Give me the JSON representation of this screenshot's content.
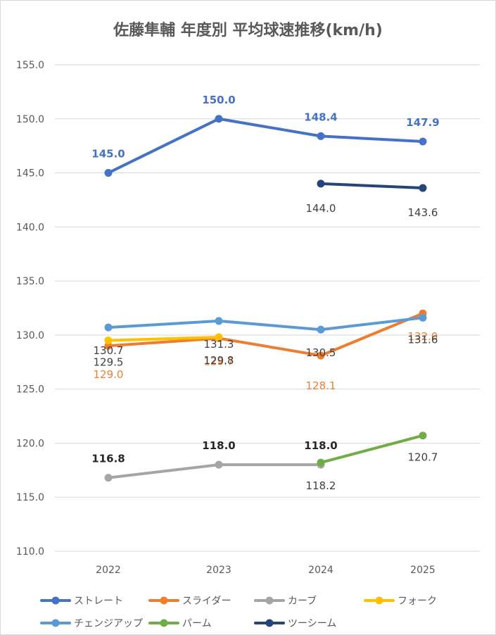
{
  "chart_data": {
    "type": "line",
    "title": "佐藤隼輔 年度別 平均球速推移(km/h)",
    "xlabel": "",
    "ylabel": "",
    "categories": [
      "2022",
      "2023",
      "2024",
      "2025"
    ],
    "ylim": [
      110.0,
      155.0
    ],
    "yticks": [
      "110.0",
      "115.0",
      "120.0",
      "125.0",
      "130.0",
      "135.0",
      "140.0",
      "145.0",
      "150.0",
      "155.0"
    ],
    "grid": true,
    "legend_position": "bottom",
    "series": [
      {
        "name": "ストレート",
        "color": "#4472C4",
        "values": [
          145.0,
          150.0,
          148.4,
          147.9
        ],
        "labels": [
          "145.0",
          "150.0",
          "148.4",
          "147.9"
        ],
        "label_color": "#4472C4",
        "label_bold": true
      },
      {
        "name": "スライダー",
        "color": "#ED7D31",
        "values": [
          129.0,
          129.7,
          128.1,
          132.0
        ],
        "labels": [
          "129.0",
          "129.7",
          "128.1",
          "132.0"
        ],
        "label_color": "#ED7D31",
        "label_bold": false
      },
      {
        "name": "カーブ",
        "color": "#A5A5A5",
        "values": [
          116.8,
          118.0,
          118.0,
          null
        ],
        "labels": [
          "116.8",
          "118.0",
          "118.0",
          null
        ],
        "label_color": "#262626",
        "label_bold": true
      },
      {
        "name": "フォーク",
        "color": "#FFC000",
        "values": [
          129.5,
          129.8,
          null,
          null
        ],
        "labels": [
          "129.5",
          "129.8",
          null,
          null
        ],
        "label_color": "#404040",
        "label_bold": false
      },
      {
        "name": "チェンジアップ",
        "color": "#5B9BD5",
        "values": [
          130.7,
          131.3,
          130.5,
          131.6
        ],
        "labels": [
          "130.7",
          "131.3",
          "130.5",
          "131.6"
        ],
        "label_color": "#404040",
        "label_bold": false
      },
      {
        "name": "パーム",
        "color": "#70AD47",
        "values": [
          null,
          null,
          118.2,
          120.7
        ],
        "labels": [
          null,
          null,
          "118.2",
          "120.7"
        ],
        "label_color": "#404040",
        "label_bold": false
      },
      {
        "name": "ツーシーム",
        "color": "#264478",
        "values": [
          null,
          null,
          144.0,
          143.6
        ],
        "labels": [
          null,
          null,
          "144.0",
          "143.6"
        ],
        "label_color": "#404040",
        "label_bold": false
      }
    ]
  }
}
